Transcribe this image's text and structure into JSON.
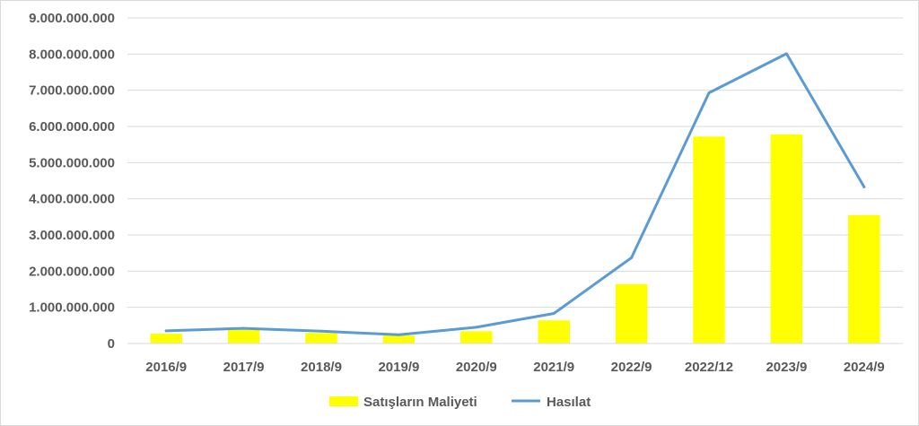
{
  "chart_data": {
    "type": "bar",
    "categories": [
      "2016/9",
      "2017/9",
      "2018/9",
      "2019/9",
      "2020/9",
      "2021/9",
      "2022/9",
      "2022/12",
      "2023/9",
      "2024/9"
    ],
    "series": [
      {
        "name": "Satışların Maliyeti",
        "type": "bar",
        "color": "#ffff00",
        "values": [
          270000000,
          380000000,
          290000000,
          220000000,
          340000000,
          640000000,
          1640000000,
          5720000000,
          5780000000,
          3550000000
        ]
      },
      {
        "name": "Hasılat",
        "type": "line",
        "color": "#5b9bd5",
        "values": [
          350000000,
          420000000,
          340000000,
          240000000,
          450000000,
          830000000,
          2370000000,
          6930000000,
          8010000000,
          4330000000
        ]
      }
    ],
    "ylim": [
      0,
      9000000000
    ],
    "yticks": [
      "0",
      "1.000.000.000",
      "2.000.000.000",
      "3.000.000.000",
      "4.000.000.000",
      "5.000.000.000",
      "6.000.000.000",
      "7.000.000.000",
      "8.000.000.000",
      "9.000.000.000"
    ],
    "title": "",
    "xlabel": "",
    "ylabel": "",
    "grid": true,
    "legend_position": "bottom"
  }
}
